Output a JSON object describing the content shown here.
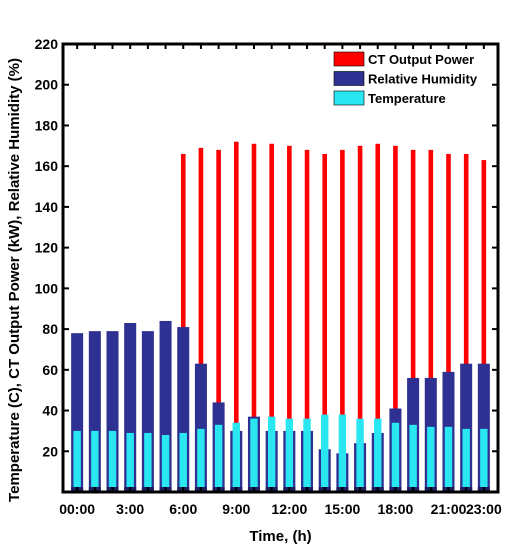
{
  "chart_data": {
    "type": "bar",
    "xlabel": "Time, (h)",
    "ylabel": "Temperature (C), CT Output Power (kW), Relative Humidity (%)",
    "ylim": [
      0,
      220
    ],
    "y_ticks": [
      20,
      40,
      60,
      80,
      100,
      120,
      140,
      160,
      180,
      200,
      220
    ],
    "x_tick_labels": [
      "00:00",
      "3:00",
      "6:00",
      "9:00",
      "12:00",
      "15:00",
      "18:00",
      "21:00",
      "23:00"
    ],
    "x_tick_positions": [
      0,
      3,
      6,
      9,
      12,
      15,
      18,
      21,
      23
    ],
    "x": [
      0,
      1,
      2,
      3,
      4,
      5,
      6,
      7,
      8,
      9,
      10,
      11,
      12,
      13,
      14,
      15,
      16,
      17,
      18,
      19,
      20,
      21,
      22,
      23
    ],
    "grid": false,
    "legend_position": "top-right",
    "series": [
      {
        "name": "CT Output Power",
        "color": "#ff0000",
        "values": [
          0,
          0,
          0,
          0,
          0,
          0,
          166,
          169,
          168,
          172,
          171,
          171,
          170,
          168,
          166,
          168,
          170,
          171,
          170,
          168,
          168,
          166,
          166,
          163
        ]
      },
      {
        "name": "Relative Humidity",
        "color": "#2e3192",
        "values": [
          78,
          79,
          79,
          83,
          79,
          84,
          81,
          63,
          44,
          30,
          37,
          30,
          30,
          30,
          21,
          19,
          24,
          29,
          41,
          56,
          56,
          59,
          63,
          63
        ]
      },
      {
        "name": "Temperature",
        "color": "#29e6f0",
        "values": [
          30,
          30,
          30,
          29,
          29,
          28,
          29,
          31,
          33,
          34,
          36,
          37,
          36,
          36,
          38,
          38,
          36,
          36,
          34,
          33,
          32,
          32,
          31,
          31
        ]
      }
    ]
  }
}
